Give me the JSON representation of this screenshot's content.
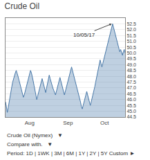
{
  "chart_data": {
    "type": "area",
    "title": "Crude Oil",
    "categories": [
      null,
      null,
      null,
      null,
      null,
      null,
      null,
      null,
      null,
      null,
      null,
      null,
      null,
      null,
      null,
      null,
      null,
      null,
      null,
      null,
      null,
      null,
      null,
      null,
      null,
      null,
      null,
      "Aug",
      null,
      null,
      null,
      null,
      null,
      null,
      null,
      null,
      null,
      null,
      null,
      null,
      null,
      null,
      null,
      null,
      null,
      null,
      null,
      null,
      null,
      null,
      null,
      null,
      null,
      null,
      null,
      null,
      null,
      null,
      null,
      null,
      null,
      null,
      null,
      null,
      null,
      null,
      null,
      null,
      null,
      null,
      "Sep",
      null,
      null,
      null,
      null,
      null,
      null,
      null,
      null,
      null,
      null,
      null,
      null,
      null,
      null,
      null,
      null,
      null,
      null,
      null,
      null,
      null,
      null,
      null,
      null,
      null,
      null,
      null,
      null,
      null,
      null,
      null,
      null,
      null,
      null,
      null,
      null,
      null,
      null,
      null,
      null,
      "Oct",
      null,
      null,
      null,
      null,
      null,
      null,
      null,
      null,
      null,
      null,
      null,
      null,
      null,
      null,
      null,
      null,
      null,
      null,
      null,
      null,
      null,
      null,
      null
    ],
    "values": [
      45.8,
      45.3,
      44.9,
      45.3,
      45.8,
      46.3,
      46.7,
      47.1,
      47.5,
      47.8,
      48.1,
      48.3,
      48.5,
      48.3,
      48.0,
      47.7,
      47.4,
      47.1,
      46.8,
      46.5,
      46.2,
      46.4,
      46.7,
      47.0,
      47.3,
      47.6,
      47.9,
      48.2,
      48.5,
      48.3,
      48.0,
      47.6,
      47.2,
      46.8,
      46.4,
      46.0,
      46.3,
      46.6,
      46.9,
      47.2,
      47.5,
      47.8,
      47.5,
      47.2,
      46.9,
      46.6,
      47.0,
      47.4,
      47.8,
      48.1,
      47.8,
      47.5,
      47.2,
      47.0,
      46.8,
      46.6,
      46.4,
      46.7,
      47.0,
      47.3,
      47.6,
      47.9,
      47.6,
      47.3,
      47.0,
      46.7,
      46.4,
      46.7,
      47.0,
      47.3,
      47.6,
      47.9,
      48.2,
      48.5,
      48.8,
      48.5,
      48.2,
      47.9,
      47.6,
      47.3,
      47.0,
      46.7,
      46.4,
      46.2,
      45.8,
      45.4,
      45.2,
      45.5,
      45.8,
      46.1,
      46.4,
      46.7,
      46.4,
      46.1,
      45.8,
      45.5,
      45.8,
      46.1,
      46.4,
      46.7,
      47.1,
      47.5,
      47.9,
      48.3,
      48.7,
      49.1,
      49.4,
      49.1,
      48.8,
      49.1,
      49.4,
      49.7,
      50.1,
      50.4,
      50.7,
      51.0,
      51.3,
      51.6,
      51.9,
      52.2,
      52.5,
      52.2,
      51.9,
      51.6,
      51.3,
      51.0,
      50.7,
      50.4,
      50.1,
      50.3,
      50.0,
      49.8,
      50.1,
      50.3,
      50.0
    ],
    "color": "#4878a8",
    "ylim": [
      44.5,
      53.0
    ],
    "yticks": [
      44.5,
      {
        "value": 45.0,
        "label": "45.0"
      },
      45.5,
      {
        "value": 46.0,
        "label": "46.0"
      },
      46.5,
      {
        "value": 47.0,
        "label": "47.0"
      },
      47.5,
      {
        "value": 48.0,
        "label": "48.0"
      },
      48.5,
      {
        "value": 49.0,
        "label": "49.0"
      },
      49.5,
      {
        "value": 50.0,
        "label": "50.0"
      },
      50.5,
      {
        "value": 51.0,
        "label": "51.0"
      },
      51.5,
      {
        "value": 52.0,
        "label": "52.0"
      },
      52.5
    ],
    "grid": true,
    "annotations": [
      {
        "text": "10/05/17",
        "x": 119,
        "y": 52.5
      },
      {
        "text": "Crude Oil (Nymex)   ▼"
      },
      {
        "text": "Compare with.   ▼"
      },
      {
        "text": "Period: 1D | 1WK | 3M | 6M | 1Y | 2Y | 5Y Custom ►"
      }
    ]
  }
}
